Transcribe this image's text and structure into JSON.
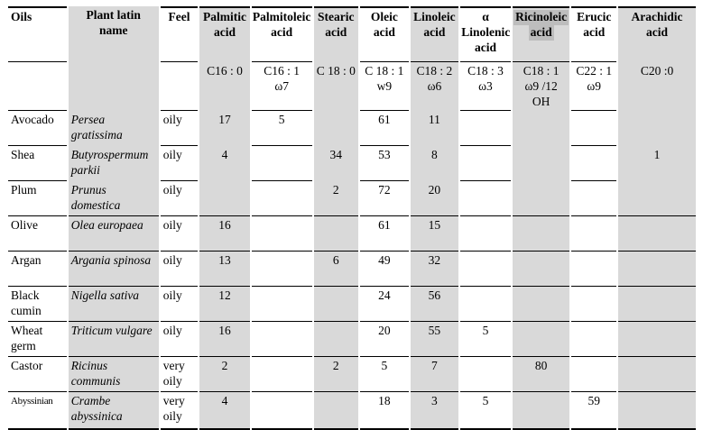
{
  "document": {
    "description": "Table of vegetable oil fatty acid compositions"
  },
  "colors": {
    "column_shade": "#d9d9d9",
    "header_highlight": "#bdbdbd",
    "rule_color": "#000000",
    "background": "#ffffff"
  },
  "table": {
    "columns": [
      {
        "key": "oils",
        "label": "Oils",
        "sub": ""
      },
      {
        "key": "latin",
        "label": "Plant latin\nname",
        "sub": ""
      },
      {
        "key": "feel",
        "label": "Feel",
        "sub": ""
      },
      {
        "key": "palmitic",
        "label": "Palmitic\nacid",
        "sub": "C16 : 0"
      },
      {
        "key": "palmitoleic",
        "label": "Palmitoleic\nacid",
        "sub": "C16 : 1\nω7"
      },
      {
        "key": "stearic",
        "label": "Stearic\nacid",
        "sub": "C 18 : 0"
      },
      {
        "key": "oleic",
        "label": "Oleic\nacid",
        "sub": "C 18 : 1\nw9"
      },
      {
        "key": "linoleic",
        "label": "Linoleic\nacid",
        "sub": "C18 : 2\nω6"
      },
      {
        "key": "linolenic",
        "label": "α\nLinolenic\nacid",
        "sub": "C18 : 3\nω3"
      },
      {
        "key": "ricinoleic",
        "label": "Ricinoleic\nacid",
        "sub": "C18 : 1\nω9 /12\nOH",
        "highlighted": true
      },
      {
        "key": "erucic",
        "label": "Erucic\nacid",
        "sub": "C22 : 1\nω9"
      },
      {
        "key": "arachidic",
        "label": "Arachidic\nacid",
        "sub": "C20 :0"
      }
    ],
    "rows": [
      {
        "oil": "Avocado",
        "latin": "Persea\ngratissima",
        "feel": "oily",
        "values": [
          "17",
          "5",
          "",
          "61",
          "11",
          "",
          "",
          "",
          ""
        ]
      },
      {
        "oil": "Shea",
        "latin": "Butyrospermum\nparkii",
        "feel": "oily",
        "values": [
          "4",
          "",
          "34",
          "53",
          "8",
          "",
          "",
          "",
          "1"
        ]
      },
      {
        "oil": "Plum",
        "latin": "Prunus\ndomestica",
        "feel": "oily",
        "values": [
          "",
          "",
          "2",
          "72",
          "20",
          "",
          "",
          "",
          ""
        ]
      },
      {
        "oil": "Olive",
        "latin": "Olea europaea",
        "feel": "oily",
        "values": [
          "16",
          "",
          "",
          "61",
          "15",
          "",
          "",
          "",
          ""
        ]
      },
      {
        "oil": "Argan",
        "latin": "Argania spinosa",
        "feel": "oily",
        "values": [
          "13",
          "",
          "6",
          "49",
          "32",
          "",
          "",
          "",
          ""
        ]
      },
      {
        "oil": "Black\ncumin",
        "latin": "Nigella sativa",
        "feel": "oily",
        "values": [
          "12",
          "",
          "",
          "24",
          "56",
          "",
          "",
          "",
          ""
        ]
      },
      {
        "oil": "Wheat\ngerm",
        "latin": "Triticum vulgare",
        "feel": "oily",
        "values": [
          "16",
          "",
          "",
          "20",
          "55",
          "5",
          "",
          "",
          ""
        ]
      },
      {
        "oil": "Castor",
        "latin": "Ricinus\ncommunis",
        "feel": "very\noily",
        "values": [
          "2",
          "",
          "2",
          "5",
          "7",
          "",
          "80",
          "",
          ""
        ]
      },
      {
        "oil": "Abyssinian",
        "latin": "Crambe\nabyssinica",
        "feel": "very\noily",
        "values": [
          "4",
          "",
          "",
          "18",
          "3",
          "5",
          "",
          "59",
          ""
        ]
      }
    ]
  }
}
